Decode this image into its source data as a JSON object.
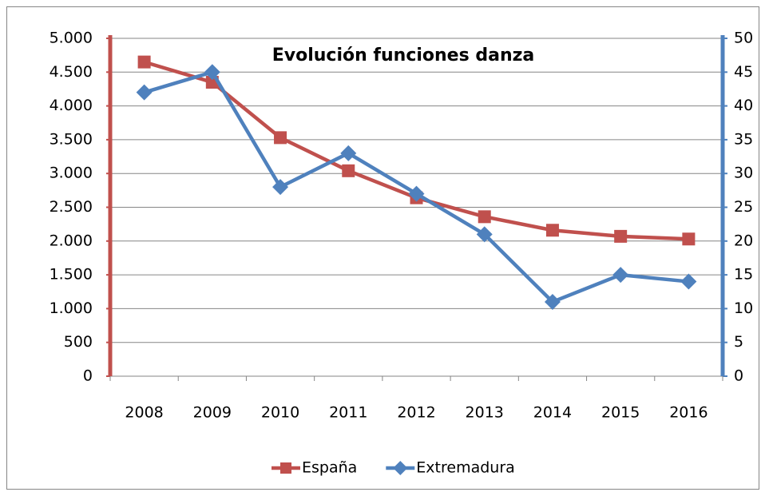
{
  "chart_data": {
    "type": "line",
    "title": "Evolución funciones danza",
    "categories": [
      "2008",
      "2009",
      "2010",
      "2011",
      "2012",
      "2013",
      "2014",
      "2015",
      "2016"
    ],
    "series": [
      {
        "name": "España",
        "color": "#c0504d",
        "marker": "square",
        "values": [
          4650,
          4350,
          3530,
          3040,
          2640,
          2360,
          2160,
          2070,
          2030
        ]
      },
      {
        "name": "Extremadura",
        "color": "#4f81bd",
        "marker": "diamond",
        "axis": "y2",
        "values": [
          42,
          45,
          28,
          33,
          27,
          21,
          11,
          15,
          14
        ]
      }
    ],
    "ylim": [
      0,
      5000
    ],
    "yticks": [
      0,
      500,
      {
        "value": 1000,
        "label": "1.000"
      },
      {
        "value": 1500,
        "label": "1.500"
      },
      {
        "value": 2000,
        "label": "2.000"
      },
      {
        "value": 2500,
        "label": "2.500"
      },
      {
        "value": 3000,
        "label": "3.000"
      },
      {
        "value": 3500,
        "label": "3.500"
      },
      {
        "value": 4000,
        "label": "4.000"
      },
      {
        "value": 4500,
        "label": "4.500"
      },
      {
        "value": 5000,
        "label": "5.000"
      }
    ],
    "y2lim": [
      0,
      50
    ],
    "y2ticks": [
      0,
      5,
      10,
      15,
      20,
      25,
      30,
      35,
      40,
      45,
      50
    ],
    "grid": true,
    "legend": "bottom"
  }
}
